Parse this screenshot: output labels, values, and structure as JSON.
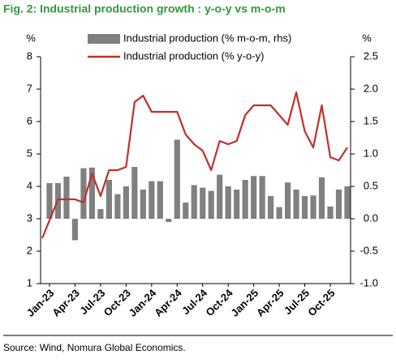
{
  "chart_data": {
    "type": "bar_line",
    "title": "Fig. 2: Industrial production growth : y-o-y vs m-o-m",
    "ylabel": "%",
    "y2label": "%",
    "source": "Source: Wind, Nomura Global Economics.",
    "categories": [
      "Jan-23",
      null,
      null,
      "Apr-23",
      null,
      null,
      "Jul-23",
      null,
      null,
      "Oct-23",
      null,
      null,
      "Jan-24",
      null,
      null,
      "Apr-24",
      null,
      null,
      "Jul-24",
      null,
      null,
      "Oct-24",
      null,
      null,
      "Jan-25",
      null,
      null,
      "Apr-25",
      null,
      null,
      "Jul-25",
      null,
      null,
      "Oct-25",
      null,
      null
    ],
    "series": [
      {
        "name": "Industrial production (% m-o-m, rhs)",
        "color": "#808080",
        "kind": "bar",
        "axis": "y2",
        "values": [
          0.55,
          0.55,
          0.65,
          -0.33,
          0.78,
          0.79,
          0.15,
          0.6,
          0.38,
          0.5,
          0.8,
          0.45,
          0.58,
          0.58,
          -0.05,
          1.22,
          0.25,
          0.52,
          0.48,
          0.43,
          0.68,
          0.5,
          0.45,
          0.6,
          0.66,
          0.66,
          0.35,
          0.18,
          0.56,
          0.45,
          0.35,
          0.36,
          0.64,
          0.19,
          0.45,
          0.5
        ]
      },
      {
        "name": "Industrial production (% y-o-y)",
        "color": "#c0302a",
        "kind": "line",
        "values": [
          2.4,
          3.6,
          3.6,
          3.6,
          3.5,
          4.4,
          3.7,
          4.5,
          4.5,
          4.6,
          6.6,
          6.8,
          6.3,
          6.3,
          6.3,
          6.3,
          5.6,
          5.3,
          5.1,
          4.5,
          5.4,
          5.3,
          5.4,
          6.2,
          6.5,
          6.5,
          6.5,
          6.2,
          5.9,
          6.9,
          5.7,
          5.2,
          6.5,
          4.9,
          4.8,
          5.2
        ]
      }
    ],
    "ylim": [
      1,
      8
    ],
    "yticks": [
      1,
      2,
      3,
      4,
      5,
      6,
      7,
      8
    ],
    "y2lim": [
      -1,
      2.5
    ],
    "y2ticks": [
      {
        "value": -1,
        "label": "-1.0"
      },
      -0.5,
      {
        "value": 0,
        "label": "0.0"
      },
      0.5,
      {
        "value": 1,
        "label": "1.0"
      },
      1.5,
      {
        "value": 2,
        "label": "2.0"
      },
      2.5
    ]
  }
}
